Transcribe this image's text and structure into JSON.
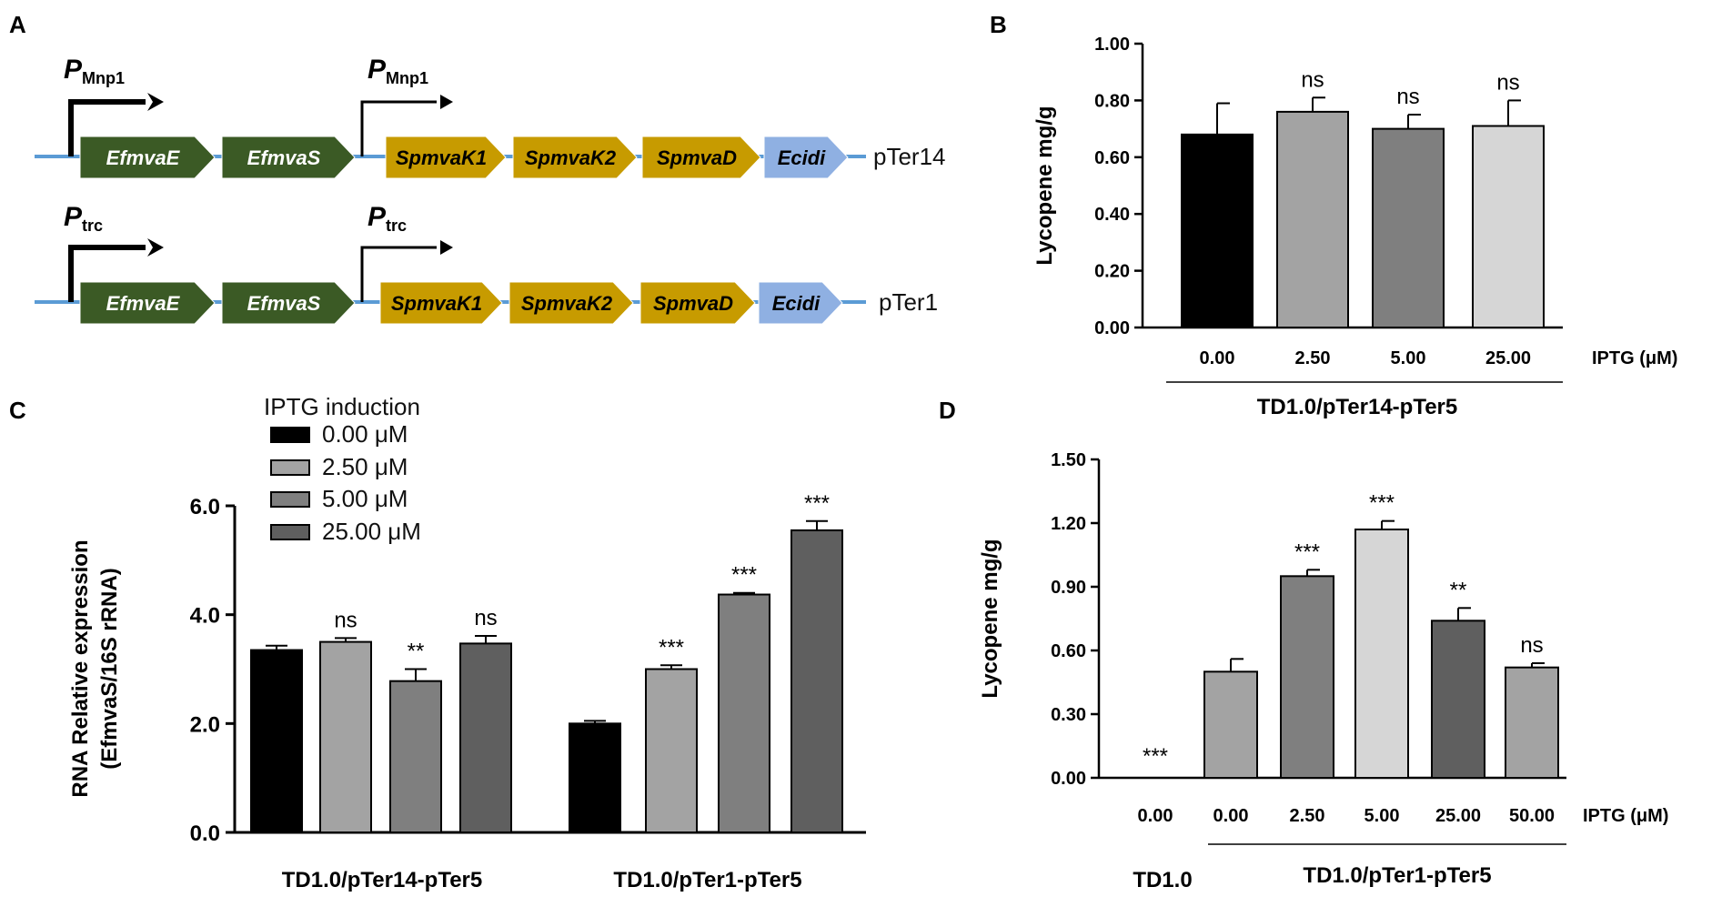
{
  "colors": {
    "black": "#000000",
    "lightgray": "#a3a3a3",
    "gray": "#7f7f7f",
    "verylight": "#d6d6d6",
    "darkgray": "#5f5f5f",
    "green": "#3b5a25",
    "gold": "#c79b00",
    "blue": "#8fb0e2",
    "line": "#5b9bd5"
  },
  "panel_labels": [
    "A",
    "B",
    "C",
    "D"
  ],
  "panelA": {
    "constructs": [
      {
        "name": "pTer14",
        "promoter_main": "P",
        "promoter_sub": "Mnp1",
        "genes": [
          "EfmvaE",
          "EfmvaS",
          "SpmvaK1",
          "SpmvaK2",
          "SpmvaD",
          "Ecidi"
        ]
      },
      {
        "name": "pTer1",
        "promoter_main": "P",
        "promoter_sub": "trc",
        "genes": [
          "EfmvaE",
          "EfmvaS",
          "SpmvaK1",
          "SpmvaK2",
          "SpmvaD",
          "Ecidi"
        ]
      }
    ]
  },
  "chart_data": [
    {
      "panel": "B",
      "type": "bar",
      "ylabel": "Lycopene mg/g",
      "ylim": [
        0,
        1.0
      ],
      "yticks": [
        "0.00",
        "0.20",
        "0.40",
        "0.60",
        "0.80",
        "1.00"
      ],
      "categories": [
        "0.00",
        "2.50",
        "5.00",
        "25.00"
      ],
      "values": [
        0.68,
        0.76,
        0.7,
        0.71
      ],
      "errors": [
        0.11,
        0.05,
        0.05,
        0.09
      ],
      "significance": [
        "",
        "ns",
        "ns",
        "ns"
      ],
      "bar_colors": [
        "#000000",
        "#a3a3a3",
        "#7f7f7f",
        "#d6d6d6"
      ],
      "x_unit_label": "IPTG (μM)",
      "group_label": "TD1.0/pTer14-pTer5"
    },
    {
      "panel": "C",
      "type": "bar",
      "ylabel": "RNA Relative expression",
      "ylabel2": "(EfmvaS/16S rRNA)",
      "ylim": [
        0,
        6.0
      ],
      "yticks": [
        "0.0",
        "2.0",
        "4.0",
        "6.0"
      ],
      "legend_title": "IPTG induction",
      "series": [
        {
          "name": "0.00 μM",
          "values": [
            3.35,
            2.0
          ],
          "errors": [
            0.08,
            0.05
          ],
          "significance": [
            "",
            ""
          ],
          "color": "#000000"
        },
        {
          "name": "2.50 μM",
          "values": [
            3.5,
            3.0
          ],
          "errors": [
            0.07,
            0.07
          ],
          "significance": [
            "ns",
            "***"
          ],
          "color": "#a3a3a3"
        },
        {
          "name": "5.00 μM",
          "values": [
            2.78,
            4.37
          ],
          "errors": [
            0.22,
            0.03
          ],
          "significance": [
            "**",
            "***"
          ],
          "color": "#7f7f7f"
        },
        {
          "name": "25.00 μM",
          "values": [
            3.47,
            5.55
          ],
          "errors": [
            0.14,
            0.17
          ],
          "significance": [
            "ns",
            "***"
          ],
          "color": "#5f5f5f"
        }
      ],
      "categories": [
        "TD1.0/pTer14-pTer5",
        "TD1.0/pTer1-pTer5"
      ]
    },
    {
      "panel": "D",
      "type": "bar",
      "ylabel": "Lycopene mg/g",
      "ylim": [
        0,
        1.5
      ],
      "yticks": [
        "0.00",
        "0.30",
        "0.60",
        "0.90",
        "1.20",
        "1.50"
      ],
      "categories": [
        "0.00",
        "0.00",
        "2.50",
        "5.00",
        "25.00",
        "50.00"
      ],
      "values": [
        0.0,
        0.5,
        0.95,
        1.17,
        0.74,
        0.52
      ],
      "errors": [
        0.0,
        0.06,
        0.03,
        0.04,
        0.06,
        0.02
      ],
      "significance": [
        "***",
        "",
        "***",
        "***",
        "**",
        "ns"
      ],
      "bar_colors": [
        "#000000",
        "#a3a3a3",
        "#7f7f7f",
        "#d6d6d6",
        "#5f5f5f",
        "#a3a3a3"
      ],
      "x_unit_label": "IPTG (μM)",
      "group_label_left": "TD1.0",
      "group_label_right": "TD1.0/pTer1-pTer5"
    }
  ]
}
